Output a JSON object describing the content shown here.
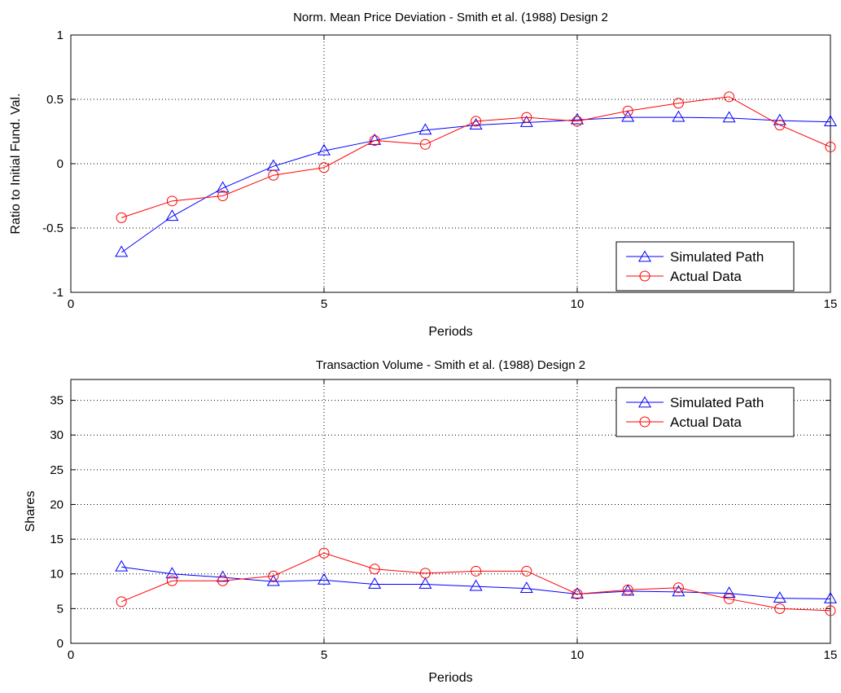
{
  "chart_data": [
    {
      "type": "line",
      "title": "Norm. Mean Price Deviation - Smith et al. (1988) Design 2",
      "xlabel": "Periods",
      "ylabel": "Ratio to Initial Fund. Val.",
      "xlim": [
        0,
        15
      ],
      "ylim": [
        -1,
        1
      ],
      "xticks": [
        0,
        5,
        10,
        15
      ],
      "xtick_labels": [
        "0",
        "5",
        "10",
        "15"
      ],
      "yticks": [
        -1,
        -0.5,
        0,
        0.5,
        1
      ],
      "ytick_labels": [
        "-1",
        "-0.5",
        "0",
        "0.5",
        "1"
      ],
      "grid": true,
      "legend_position": "bottom-right",
      "x": [
        1,
        2,
        3,
        4,
        5,
        6,
        7,
        8,
        9,
        10,
        11,
        12,
        13,
        14,
        15
      ],
      "series": [
        {
          "name": "Simulated Path",
          "color": "#0000ff",
          "marker": "triangle",
          "values": [
            -0.69,
            -0.41,
            -0.19,
            -0.02,
            0.1,
            0.18,
            0.26,
            0.3,
            0.32,
            0.34,
            0.36,
            0.36,
            0.355,
            0.335,
            0.325
          ]
        },
        {
          "name": "Actual Data",
          "color": "#ff0000",
          "marker": "circle",
          "values": [
            -0.42,
            -0.29,
            -0.25,
            -0.09,
            -0.03,
            0.18,
            0.15,
            0.33,
            0.36,
            0.33,
            0.41,
            0.47,
            0.52,
            0.3,
            0.13
          ]
        }
      ]
    },
    {
      "type": "line",
      "title": "Transaction Volume - Smith et al. (1988) Design 2",
      "xlabel": "Periods",
      "ylabel": "Shares",
      "xlim": [
        0,
        15
      ],
      "ylim": [
        0,
        38
      ],
      "xticks": [
        0,
        5,
        10,
        15
      ],
      "xtick_labels": [
        "0",
        "5",
        "10",
        "15"
      ],
      "yticks": [
        0,
        5,
        10,
        15,
        20,
        25,
        30,
        35
      ],
      "ytick_labels": [
        "0",
        "5",
        "10",
        "15",
        "20",
        "25",
        "30",
        "35"
      ],
      "grid": true,
      "legend_position": "top-right",
      "x": [
        1,
        2,
        3,
        4,
        5,
        6,
        7,
        8,
        9,
        10,
        11,
        12,
        13,
        14,
        15
      ],
      "series": [
        {
          "name": "Simulated Path",
          "color": "#0000ff",
          "marker": "triangle",
          "values": [
            11.0,
            10.0,
            9.5,
            8.9,
            9.1,
            8.5,
            8.5,
            8.2,
            7.9,
            7.1,
            7.5,
            7.4,
            7.2,
            6.5,
            6.4
          ]
        },
        {
          "name": "Actual Data",
          "color": "#ff0000",
          "marker": "circle",
          "values": [
            6.0,
            9.0,
            9.0,
            9.7,
            13.0,
            10.7,
            10.1,
            10.4,
            10.4,
            7.1,
            7.7,
            8.0,
            6.4,
            5.0,
            4.7
          ]
        }
      ]
    }
  ]
}
